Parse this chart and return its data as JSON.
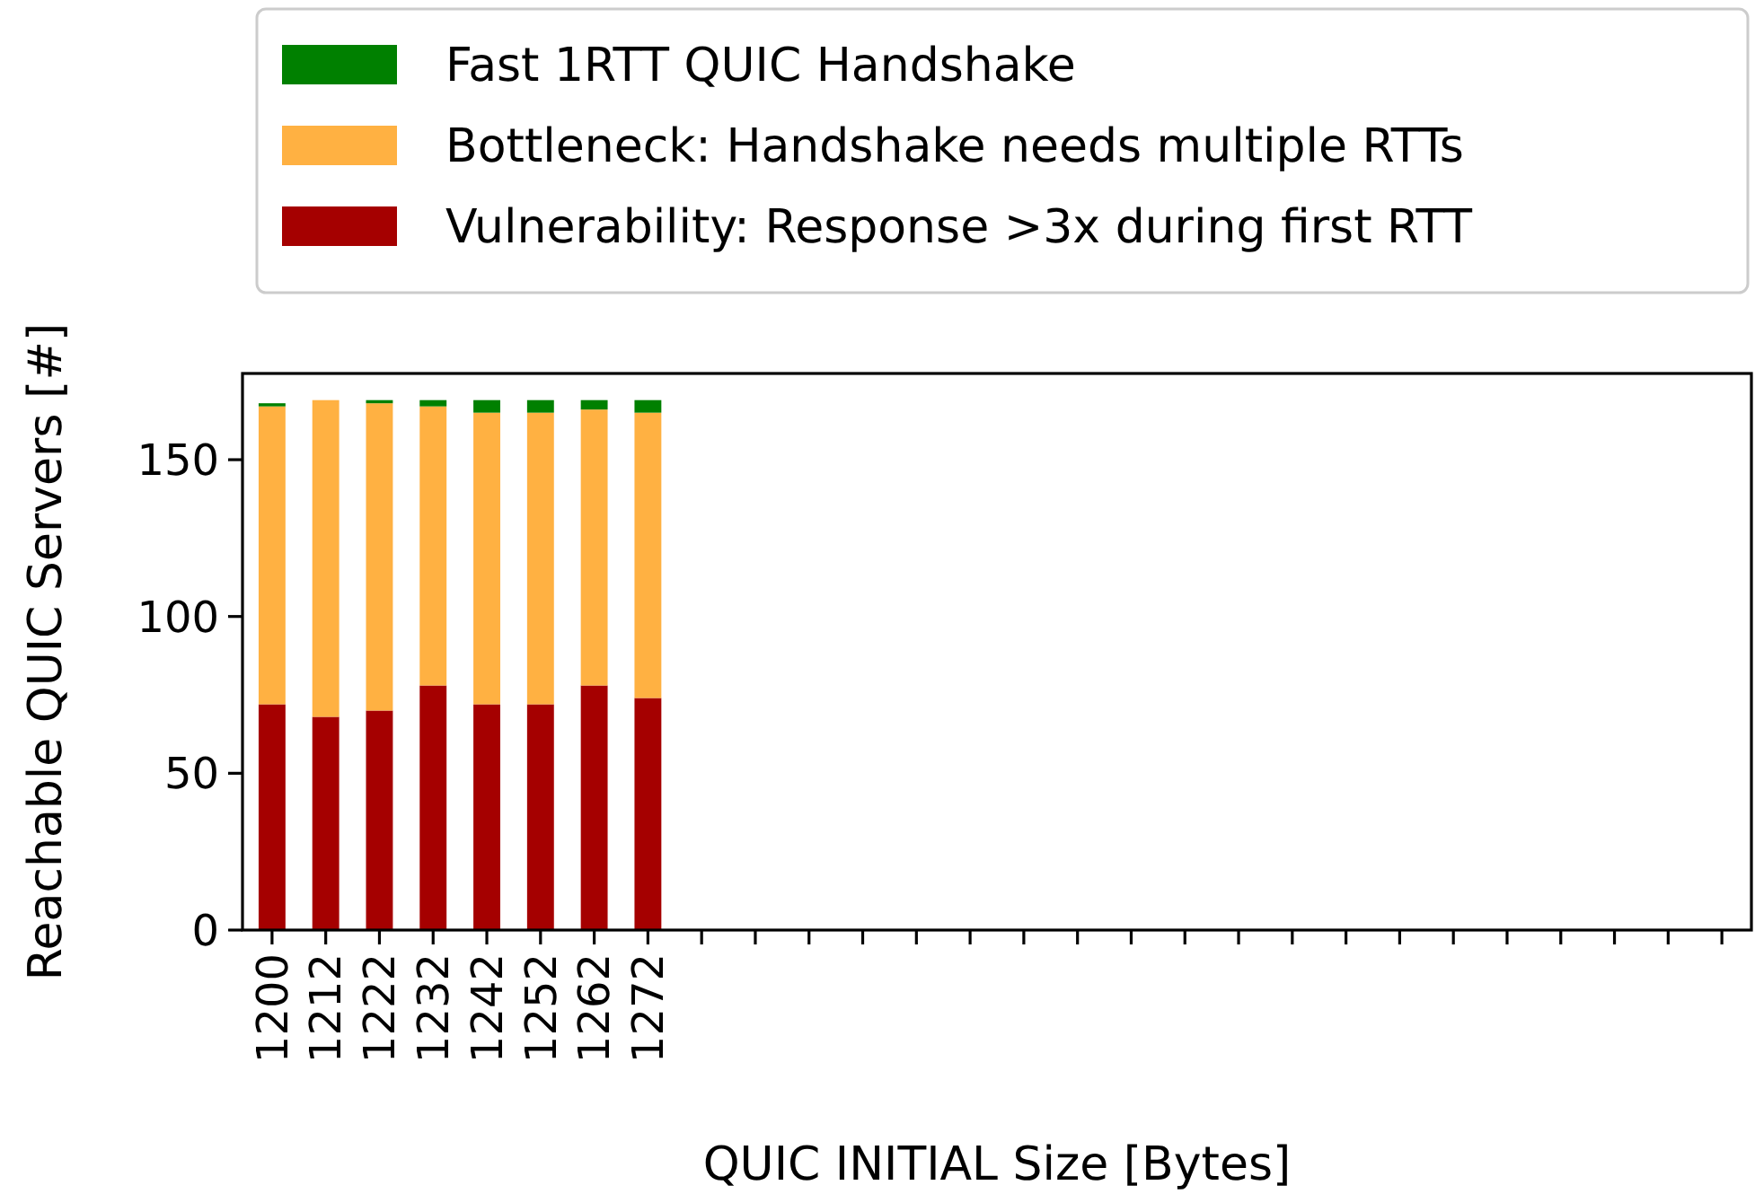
{
  "chart_data": {
    "type": "bar",
    "stacked": true,
    "xlabel": "QUIC INITIAL Size [Bytes]",
    "ylabel": "Reachable QUIC Servers [#]",
    "categories": [
      "1200",
      "1212",
      "1222",
      "1232",
      "1242",
      "1252",
      "1262",
      "1272",
      null,
      null,
      null,
      null,
      null,
      null,
      null,
      null,
      null,
      null,
      null,
      null,
      null,
      null,
      null,
      null,
      null,
      null,
      null,
      null
    ],
    "series": [
      {
        "name": "Vulnerability: Response >3x during first RTT",
        "color": "#a50000",
        "values": [
          72,
          68,
          70,
          78,
          72,
          72,
          78,
          74,
          0,
          0,
          0,
          0,
          0,
          0,
          0,
          0,
          0,
          0,
          0,
          0,
          0,
          0,
          0,
          0,
          0,
          0,
          0,
          0
        ]
      },
      {
        "name": "Bottleneck: Handshake needs multiple RTTs",
        "color": "#ffb142",
        "values": [
          95,
          101,
          98,
          89,
          93,
          93,
          88,
          91,
          0,
          0,
          0,
          0,
          0,
          0,
          0,
          0,
          0,
          0,
          0,
          0,
          0,
          0,
          0,
          0,
          0,
          0,
          0,
          0
        ]
      },
      {
        "name": "Fast 1RTT QUIC Handshake",
        "color": "#008000",
        "values": [
          1,
          0,
          1,
          2,
          4,
          4,
          3,
          4,
          0,
          0,
          0,
          0,
          0,
          0,
          0,
          0,
          0,
          0,
          0,
          0,
          0,
          0,
          0,
          0,
          0,
          0,
          0,
          0
        ]
      }
    ],
    "ylim": [
      0,
      177.5
    ],
    "yticks": [
      0,
      50,
      100,
      150
    ],
    "grid": false,
    "legend": "top"
  }
}
